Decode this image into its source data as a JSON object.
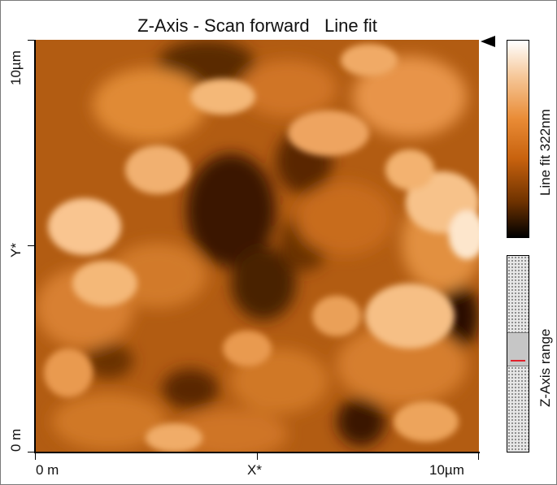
{
  "title": "Z-Axis - Scan forward   Line fit",
  "y_axis": {
    "top_label": "10µm",
    "mid_label": "Y*",
    "bottom_label": "0 m"
  },
  "x_axis": {
    "left_label": "0 m",
    "mid_label": "X*",
    "right_label": "10µm"
  },
  "color_bar": {
    "label": "Line fit 322nm",
    "colors": [
      "#ffffff",
      "#f6c89a",
      "#e98b35",
      "#c8620e",
      "#6e3200",
      "#000000"
    ]
  },
  "range_panel": {
    "label": "Z-Axis range",
    "marker_color": "#e0202a"
  }
}
